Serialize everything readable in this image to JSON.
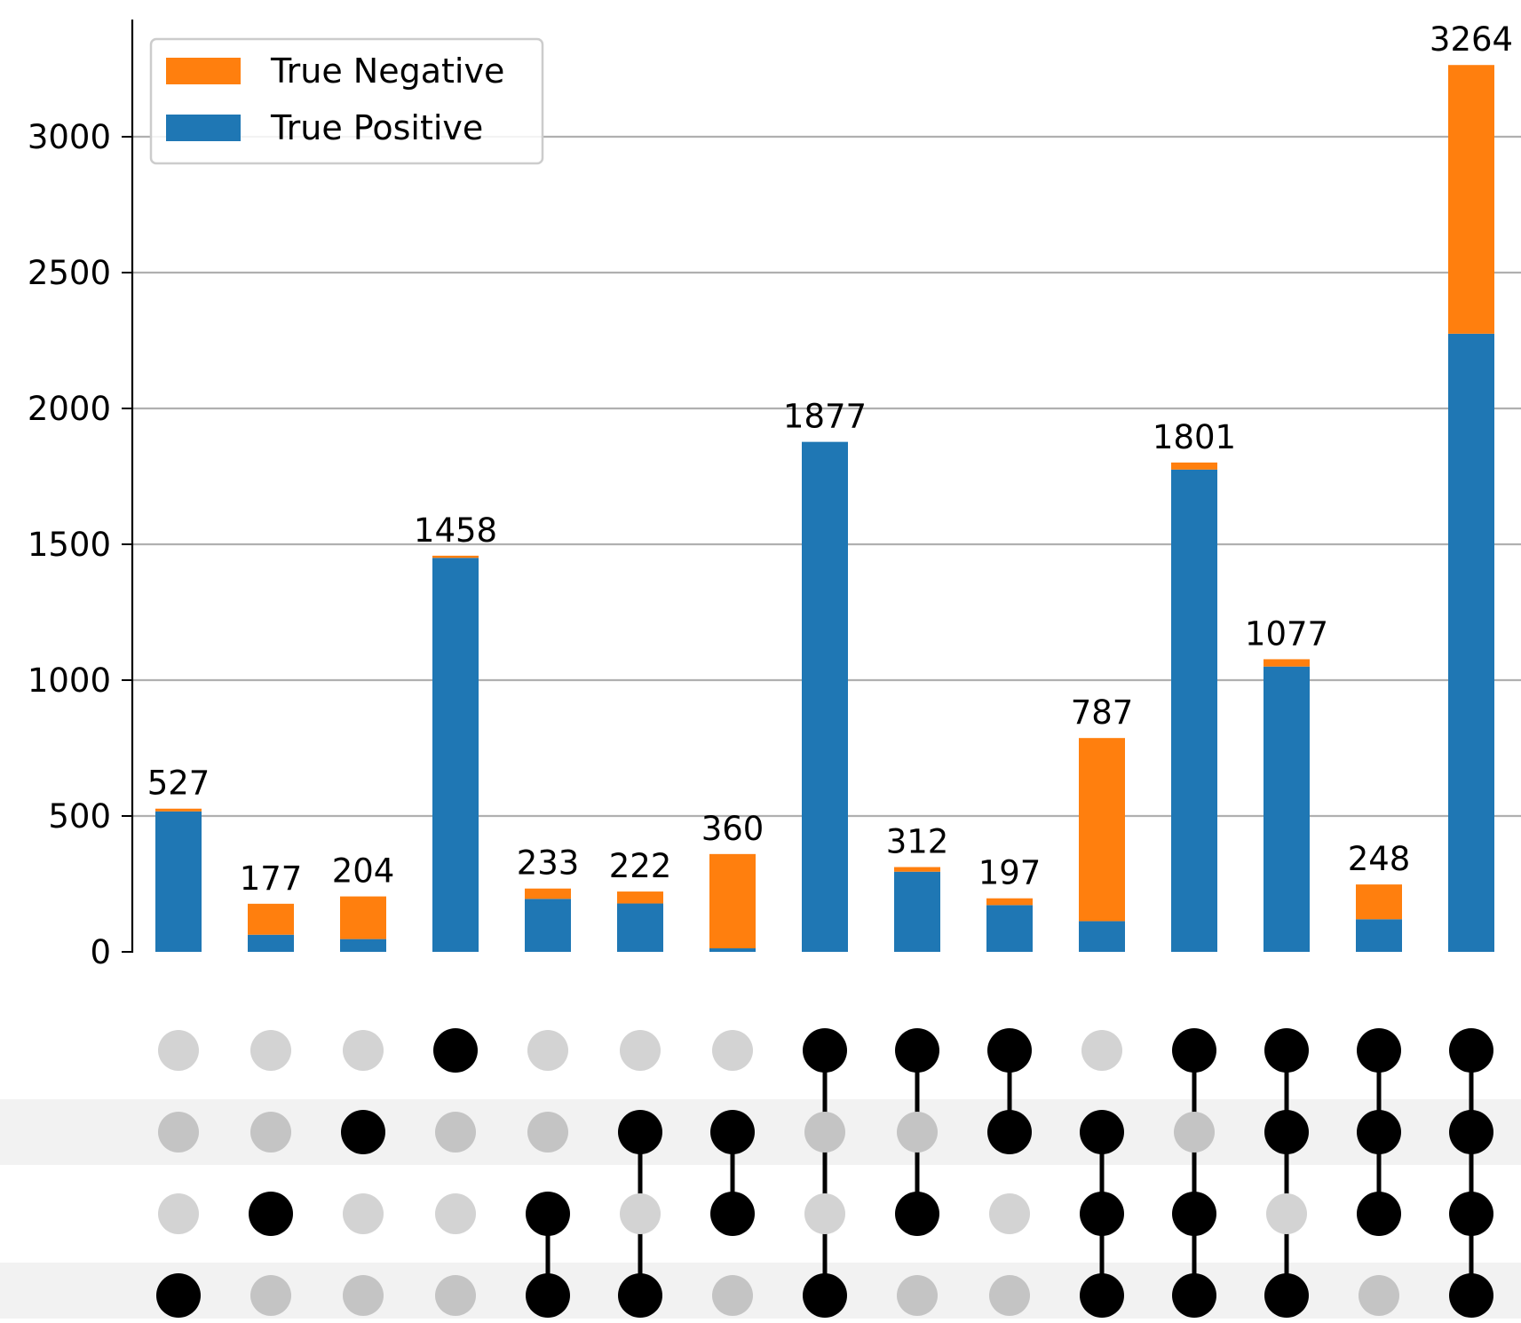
{
  "chart_data": {
    "type": "bar",
    "subtype": "upset-stacked",
    "title": "",
    "xlabel": "",
    "ylabel": "",
    "ylim": [
      0,
      3400
    ],
    "yticks": [
      0,
      500,
      1000,
      1500,
      2000,
      2500,
      3000
    ],
    "ytick_labels": [
      "0",
      "500",
      "1000",
      "1500",
      "2000",
      "2500",
      "3000"
    ],
    "grid": "horizontal",
    "legend_position": "top-left",
    "legend": [
      "True Negative",
      "True Positive"
    ],
    "totals": [
      527,
      177,
      204,
      1458,
      233,
      222,
      360,
      1877,
      312,
      197,
      787,
      1801,
      1077,
      248,
      3264
    ],
    "total_labels": [
      "527",
      "177",
      "204",
      "1458",
      "233",
      "222",
      "360",
      "1877",
      "312",
      "197",
      "787",
      "1801",
      "1077",
      "248",
      "3264"
    ],
    "series": [
      {
        "name": "True Positive",
        "color": "#1f77b4",
        "values": [
          517,
          63,
          47,
          1450,
          195,
          178,
          13,
          1877,
          295,
          172,
          113,
          1775,
          1050,
          120,
          2275
        ]
      },
      {
        "name": "True Negative",
        "color": "#ff7f0e",
        "values": [
          10,
          114,
          157,
          8,
          38,
          44,
          347,
          0,
          17,
          25,
          674,
          26,
          27,
          128,
          989
        ]
      }
    ],
    "matrix": {
      "row_count": 4,
      "membership": [
        [
          4
        ],
        [
          3
        ],
        [
          2
        ],
        [
          1
        ],
        [
          3,
          4
        ],
        [
          2,
          4
        ],
        [
          2,
          3
        ],
        [
          1,
          4
        ],
        [
          1,
          3
        ],
        [
          1,
          2
        ],
        [
          2,
          3,
          4
        ],
        [
          1,
          3,
          4
        ],
        [
          1,
          2,
          4
        ],
        [
          1,
          2,
          3
        ],
        [
          1,
          2,
          3,
          4
        ]
      ]
    }
  }
}
